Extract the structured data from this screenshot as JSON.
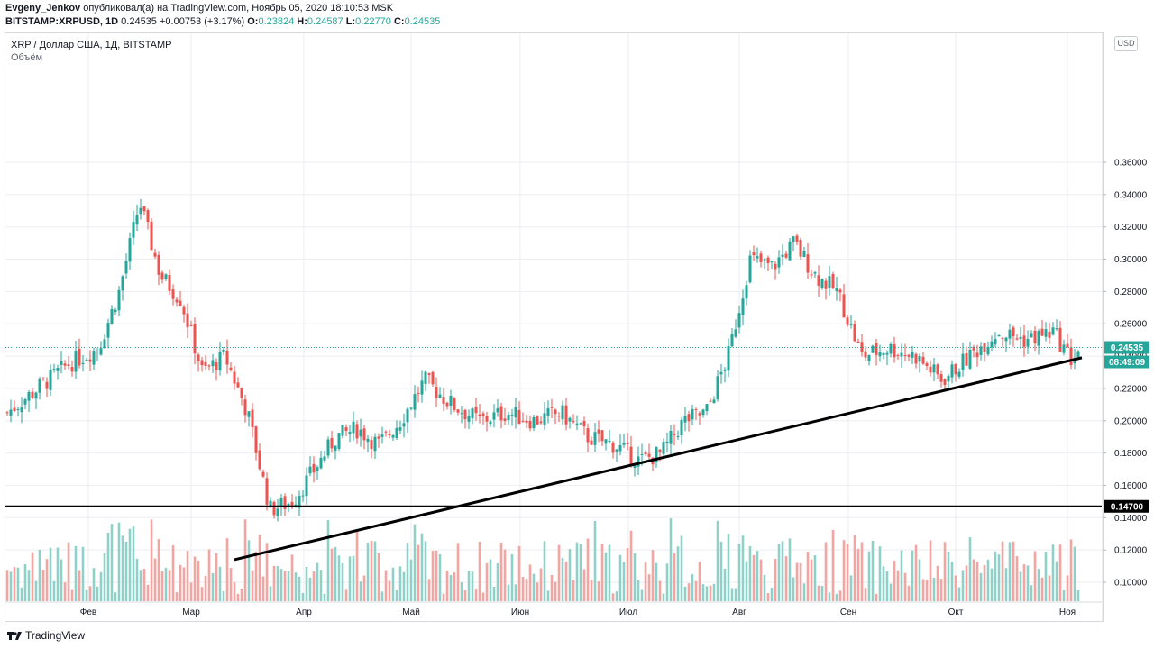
{
  "header": {
    "author": "Evgeny_Jenkov",
    "published_text": "опубликовал(а) на TradingView.com, Ноябрь 05, 2020 18:10:53 MSK",
    "symbol_line": "BITSTAMP:XRPUSD, 1D",
    "last": "0.24535",
    "change": "+0.00753 (+3.17%)",
    "o_label": "O:",
    "o": "0.23824",
    "h_label": "H:",
    "h": "0.24587",
    "l_label": "L:",
    "l": "0.22770",
    "c_label": "C:",
    "c": "0.24535"
  },
  "legend": {
    "title": "XRP / Доллар США, 1Д, BITSTAMP",
    "volume": "Объём"
  },
  "currency_button": "USD",
  "price_tags": {
    "last_price": "0.24535",
    "countdown": "08:49:09",
    "level": "0.14700"
  },
  "footer": {
    "brand": "TradingView"
  },
  "colors": {
    "up": "#26a69a",
    "down": "#ef5350",
    "vol_up": "#8fd1c9",
    "vol_down": "#f5a4a2",
    "line": "#000000"
  },
  "chart_data": {
    "type": "candlestick",
    "title": "XRP / Доллар США, 1Д, BITSTAMP",
    "y_ticks": [
      "0.36000",
      "0.34000",
      "0.32000",
      "0.30000",
      "0.28000",
      "0.26000",
      "0.24000",
      "0.22000",
      "0.20000",
      "0.18000",
      "0.16000",
      "0.14000",
      "0.12000",
      "0.10000"
    ],
    "x_ticks": [
      "Фев",
      "Мар",
      "Апр",
      "Май",
      "Июн",
      "Июл",
      "Авг",
      "Сен",
      "Окт",
      "Ноя"
    ],
    "ylim": [
      0.09,
      0.37
    ],
    "grid": true,
    "approx_close_path": [
      [
        "Jan",
        0.205
      ],
      [
        "Jan",
        0.235
      ],
      [
        "Feb",
        0.245
      ],
      [
        "Feb",
        0.28
      ],
      [
        "Feb",
        0.335
      ],
      [
        "Feb",
        0.29
      ],
      [
        "Feb",
        0.275
      ],
      [
        "Mar",
        0.23
      ],
      [
        "Mar",
        0.24
      ],
      [
        "Mar",
        0.205
      ],
      [
        "Mar",
        0.145
      ],
      [
        "Mar",
        0.15
      ],
      [
        "Apr",
        0.17
      ],
      [
        "Apr",
        0.19
      ],
      [
        "Apr",
        0.195
      ],
      [
        "Apr",
        0.185
      ],
      [
        "Apr",
        0.2
      ],
      [
        "May",
        0.225
      ],
      [
        "May",
        0.21
      ],
      [
        "May",
        0.2
      ],
      [
        "May",
        0.205
      ],
      [
        "Jun",
        0.2
      ],
      [
        "Jun",
        0.205
      ],
      [
        "Jun",
        0.19
      ],
      [
        "Jun",
        0.185
      ],
      [
        "Jul",
        0.175
      ],
      [
        "Jul",
        0.18
      ],
      [
        "Jul",
        0.2
      ],
      [
        "Jul",
        0.205
      ],
      [
        "Jul",
        0.24
      ],
      [
        "Aug",
        0.3
      ],
      [
        "Aug",
        0.295
      ],
      [
        "Aug",
        0.31
      ],
      [
        "Aug",
        0.29
      ],
      [
        "Aug",
        0.28
      ],
      [
        "Sep",
        0.24
      ],
      [
        "Sep",
        0.245
      ],
      [
        "Sep",
        0.24
      ],
      [
        "Sep",
        0.225
      ],
      [
        "Oct",
        0.24
      ],
      [
        "Oct",
        0.255
      ],
      [
        "Oct",
        0.25
      ],
      [
        "Oct",
        0.255
      ],
      [
        "Nov",
        0.238
      ],
      [
        "Nov",
        0.24535
      ]
    ],
    "horizontal_level": 0.147,
    "trendline": {
      "from": [
        "Mar",
        0.114
      ],
      "to": [
        "Nov",
        0.239
      ]
    }
  }
}
